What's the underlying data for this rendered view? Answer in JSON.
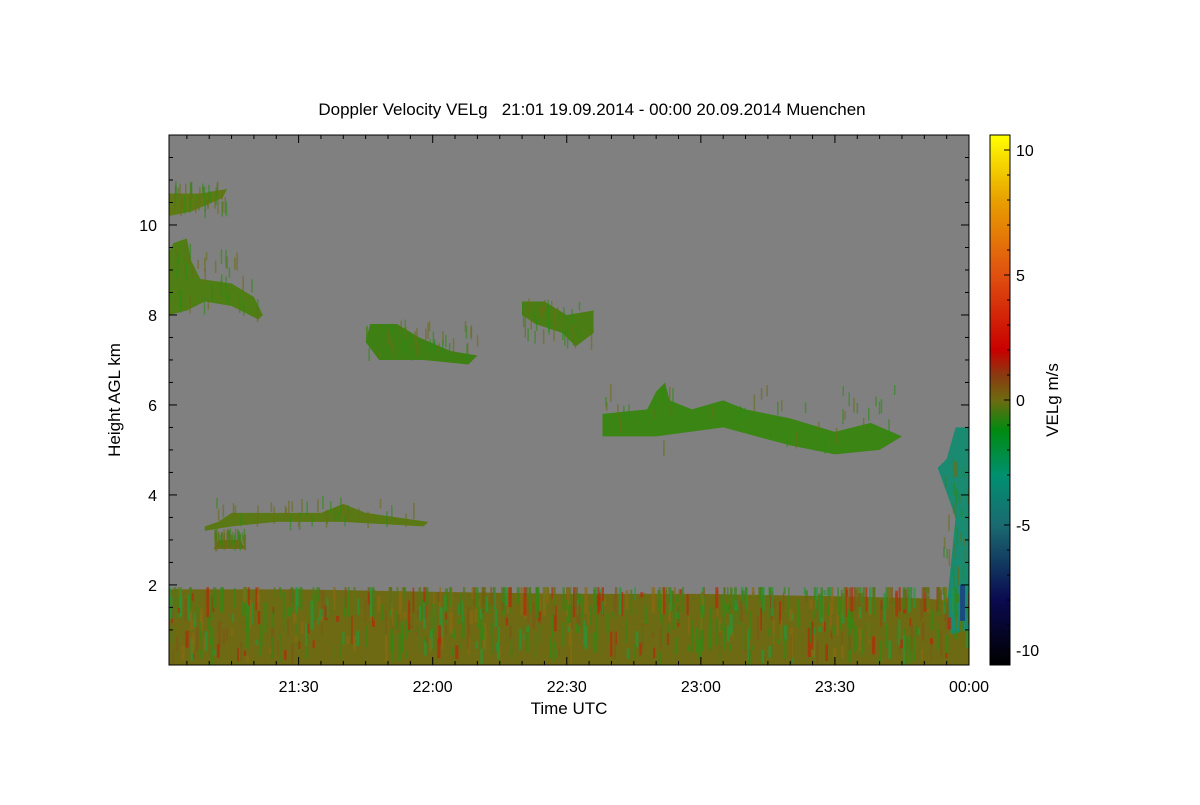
{
  "chart_data": {
    "type": "heatmap",
    "title": "Doppler Velocity VELg   21:01 19.09.2014 - 00:00 20.09.2014 Muenchen",
    "xlabel": "Time UTC",
    "ylabel": "Height AGL km",
    "colorbar_label": "VELg m/s",
    "xlim_minutes_after_2100": [
      1,
      180
    ],
    "ylim_km": [
      0.22,
      12.0
    ],
    "x_ticks": [
      {
        "label": "21:30",
        "value": 30
      },
      {
        "label": "22:00",
        "value": 60
      },
      {
        "label": "22:30",
        "value": 90
      },
      {
        "label": "23:00",
        "value": 120
      },
      {
        "label": "23:30",
        "value": 150
      },
      {
        "label": "00:00",
        "value": 180
      }
    ],
    "y_ticks": [
      {
        "label": "2",
        "value": 2
      },
      {
        "label": "4",
        "value": 4
      },
      {
        "label": "6",
        "value": 6
      },
      {
        "label": "8",
        "value": 8
      },
      {
        "label": "10",
        "value": 10
      }
    ],
    "colorbar_ticks": [
      {
        "label": "10",
        "value": 10
      },
      {
        "label": "5",
        "value": 5
      },
      {
        "label": "0",
        "value": 0
      },
      {
        "label": "-5",
        "value": -5
      },
      {
        "label": "-10",
        "value": -10
      }
    ],
    "colorbar_range": [
      -10.6,
      10.6
    ],
    "colormap": [
      {
        "v": -10.6,
        "c": "#000000"
      },
      {
        "v": -8,
        "c": "#0a0a50"
      },
      {
        "v": -5,
        "c": "#1a6a70"
      },
      {
        "v": -3,
        "c": "#009070"
      },
      {
        "v": -1.2,
        "c": "#008a10"
      },
      {
        "v": 0,
        "c": "#6e6a10"
      },
      {
        "v": 1,
        "c": "#8a3a10"
      },
      {
        "v": 2,
        "c": "#c80000"
      },
      {
        "v": 5,
        "c": "#e05010"
      },
      {
        "v": 8,
        "c": "#e8a000"
      },
      {
        "v": 10.6,
        "c": "#ffff00"
      }
    ],
    "no_data_color": "#808080",
    "features": [
      {
        "name": "boundary-layer",
        "velocity": 0.2,
        "color": "#6e6a14",
        "polygon": [
          [
            1,
            0.22
          ],
          [
            180,
            0.22
          ],
          [
            180,
            1.6
          ],
          [
            170,
            1.7
          ],
          [
            150,
            1.75
          ],
          [
            120,
            1.8
          ],
          [
            90,
            1.8
          ],
          [
            60,
            1.85
          ],
          [
            30,
            1.9
          ],
          [
            1,
            1.9
          ]
        ]
      },
      {
        "name": "cirrus-top-left",
        "velocity": -0.3,
        "color": "#5e7a14",
        "polygon": [
          [
            1,
            10.2
          ],
          [
            6,
            10.3
          ],
          [
            13,
            10.6
          ],
          [
            14,
            10.8
          ],
          [
            8,
            10.7
          ],
          [
            1,
            10.7
          ]
        ]
      },
      {
        "name": "cirrus-slant-left",
        "velocity": -0.6,
        "color": "#4e7e14",
        "polygon": [
          [
            1,
            8.0
          ],
          [
            5,
            8.1
          ],
          [
            9,
            8.3
          ],
          [
            15,
            8.2
          ],
          [
            21,
            7.9
          ],
          [
            22,
            8.0
          ],
          [
            20,
            8.4
          ],
          [
            15,
            8.7
          ],
          [
            8,
            8.8
          ],
          [
            6,
            9.2
          ],
          [
            5,
            9.7
          ],
          [
            2,
            9.6
          ],
          [
            1,
            9.4
          ]
        ]
      },
      {
        "name": "cloud-22-00",
        "velocity": -0.8,
        "color": "#3f8014",
        "polygon": [
          [
            45,
            7.4
          ],
          [
            48,
            7.0
          ],
          [
            58,
            7.0
          ],
          [
            68,
            6.9
          ],
          [
            70,
            7.1
          ],
          [
            64,
            7.2
          ],
          [
            57,
            7.5
          ],
          [
            52,
            7.8
          ],
          [
            46,
            7.8
          ]
        ]
      },
      {
        "name": "cloud-22-30",
        "velocity": -0.7,
        "color": "#4a7e14",
        "polygon": [
          [
            80,
            8.0
          ],
          [
            83,
            7.8
          ],
          [
            89,
            7.6
          ],
          [
            92,
            7.3
          ],
          [
            96,
            7.6
          ],
          [
            96,
            8.1
          ],
          [
            90,
            8.0
          ],
          [
            85,
            8.3
          ],
          [
            80,
            8.3
          ]
        ]
      },
      {
        "name": "mid-level-cloud",
        "velocity": -1.0,
        "color": "#3a8514",
        "polygon": [
          [
            98,
            5.3
          ],
          [
            110,
            5.3
          ],
          [
            125,
            5.5
          ],
          [
            140,
            5.1
          ],
          [
            150,
            4.9
          ],
          [
            160,
            5.0
          ],
          [
            165,
            5.3
          ],
          [
            158,
            5.6
          ],
          [
            150,
            5.4
          ],
          [
            140,
            5.7
          ],
          [
            130,
            5.9
          ],
          [
            125,
            6.1
          ],
          [
            118,
            5.9
          ],
          [
            113,
            6.1
          ],
          [
            112,
            6.5
          ],
          [
            110,
            6.3
          ],
          [
            108,
            5.9
          ],
          [
            98,
            5.8
          ]
        ]
      },
      {
        "name": "low-cloud-21-40",
        "velocity": 0.3,
        "color": "#5a7814",
        "polygon": [
          [
            9,
            3.2
          ],
          [
            15,
            3.3
          ],
          [
            25,
            3.4
          ],
          [
            40,
            3.4
          ],
          [
            58,
            3.3
          ],
          [
            59,
            3.4
          ],
          [
            45,
            3.6
          ],
          [
            40,
            3.8
          ],
          [
            35,
            3.6
          ],
          [
            25,
            3.6
          ],
          [
            15,
            3.6
          ],
          [
            12,
            3.4
          ],
          [
            9,
            3.3
          ]
        ]
      },
      {
        "name": "low-cloud-small",
        "velocity": 0.1,
        "color": "#6a6c14",
        "polygon": [
          [
            11,
            2.8
          ],
          [
            18,
            2.8
          ],
          [
            17,
            3.0
          ],
          [
            12,
            3.0
          ]
        ]
      },
      {
        "name": "fall-streak-2355",
        "velocity": -3.5,
        "color": "#1a8a70",
        "polygon": [
          [
            176,
            0.9
          ],
          [
            180,
            1.0
          ],
          [
            180,
            5.5
          ],
          [
            177,
            5.5
          ],
          [
            175,
            4.8
          ],
          [
            173,
            4.6
          ],
          [
            177,
            3.5
          ],
          [
            176,
            2.5
          ],
          [
            175,
            1.5
          ]
        ]
      }
    ]
  }
}
